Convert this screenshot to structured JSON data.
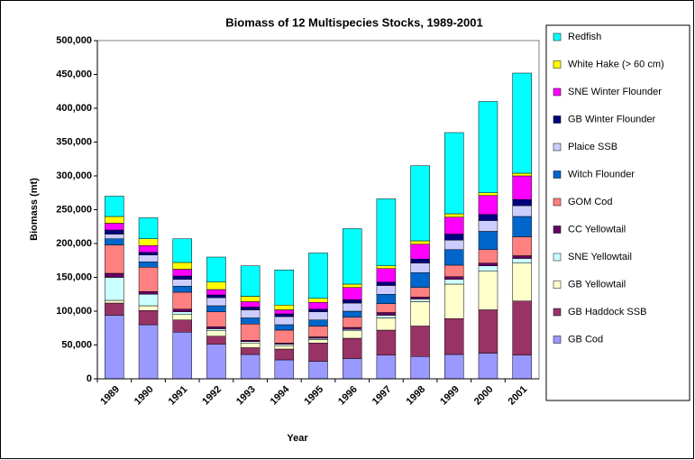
{
  "chart_data": {
    "type": "stacked_bar",
    "title": "Biomass of 12 Multispecies Stocks, 1989-2001",
    "x_label": "Year",
    "y_label": "Biomass (mt)",
    "categories": [
      "1989",
      "1990",
      "1991",
      "1992",
      "1993",
      "1994",
      "1995",
      "1996",
      "1997",
      "1998",
      "1999",
      "2000",
      "2001"
    ],
    "ylim": [
      0,
      500000
    ],
    "yticks": [
      0,
      {
        "value": 50000,
        "label": "50,000"
      },
      {
        "value": 100000,
        "label": "100,000"
      },
      {
        "value": 150000,
        "label": "150,000"
      },
      {
        "value": 200000,
        "label": "200,000"
      },
      {
        "value": 250000,
        "label": "250,000"
      },
      {
        "value": 300000,
        "label": "300,000"
      },
      {
        "value": 350000,
        "label": "350,000"
      },
      {
        "value": 400000,
        "label": "400,000"
      },
      {
        "value": 450000,
        "label": "450,000"
      },
      {
        "value": 500000,
        "label": "500,000"
      }
    ],
    "grid": false,
    "legend": "right",
    "series": [
      {
        "name": "GB Cod",
        "color": "#9999ff",
        "values": [
          94000,
          80000,
          69000,
          51000,
          36000,
          28000,
          26000,
          30000,
          35000,
          33000,
          36000,
          38000,
          35000
        ]
      },
      {
        "name": "GB Haddock SSB",
        "color": "#993366",
        "values": [
          18000,
          21000,
          18000,
          12000,
          10000,
          16000,
          27000,
          30000,
          37000,
          45000,
          53000,
          64000,
          80000
        ]
      },
      {
        "name": "GB Yellowtail",
        "color": "#ffffcc",
        "values": [
          4000,
          7000,
          8000,
          8000,
          7000,
          5000,
          5000,
          11000,
          18000,
          36000,
          51000,
          57000,
          56000
        ]
      },
      {
        "name": "SNE Yellowtail",
        "color": "#ccffff",
        "values": [
          34000,
          17000,
          4000,
          3000,
          2000,
          2000,
          2000,
          2000,
          4000,
          4000,
          7000,
          8000,
          7000
        ]
      },
      {
        "name": "CC Yellowtail",
        "color": "#660066",
        "values": [
          6000,
          4000,
          4000,
          3000,
          2000,
          2000,
          2000,
          3000,
          4000,
          3000,
          4000,
          4000,
          4000
        ]
      },
      {
        "name": "GOM Cod",
        "color": "#ff8080",
        "values": [
          42000,
          36000,
          25000,
          22000,
          24000,
          19000,
          16000,
          15000,
          13000,
          14000,
          17000,
          20000,
          28000
        ]
      },
      {
        "name": "Witch Flounder",
        "color": "#0066cc",
        "values": [
          9000,
          8000,
          9000,
          9000,
          9000,
          8000,
          9000,
          9000,
          14000,
          22000,
          23000,
          27000,
          30000
        ]
      },
      {
        "name": "Plaice SSB",
        "color": "#ccccff",
        "values": [
          7000,
          10000,
          10000,
          12000,
          12000,
          12000,
          12000,
          12000,
          13000,
          14000,
          14000,
          16000,
          16000
        ]
      },
      {
        "name": "GB Winter Flounder",
        "color": "#000080",
        "values": [
          6000,
          4000,
          5000,
          4000,
          4000,
          4000,
          4000,
          5000,
          5000,
          6000,
          9000,
          9000,
          9000
        ]
      },
      {
        "name": "SNE Winter Flounder",
        "color": "#ff00ff",
        "values": [
          10000,
          10000,
          10000,
          8000,
          8000,
          6000,
          10000,
          18000,
          20000,
          22000,
          25000,
          28000,
          35000
        ]
      },
      {
        "name": "White Hake (> 60 cm)",
        "color": "#ffff00",
        "values": [
          10000,
          10000,
          10000,
          11000,
          8000,
          7000,
          6000,
          5000,
          4000,
          5000,
          5000,
          4000,
          4000
        ]
      },
      {
        "name": "Redfish",
        "color": "#00ffff",
        "values": [
          30000,
          31000,
          35000,
          37000,
          45000,
          52000,
          67000,
          82000,
          99000,
          111000,
          120000,
          135000,
          148000
        ]
      }
    ]
  }
}
